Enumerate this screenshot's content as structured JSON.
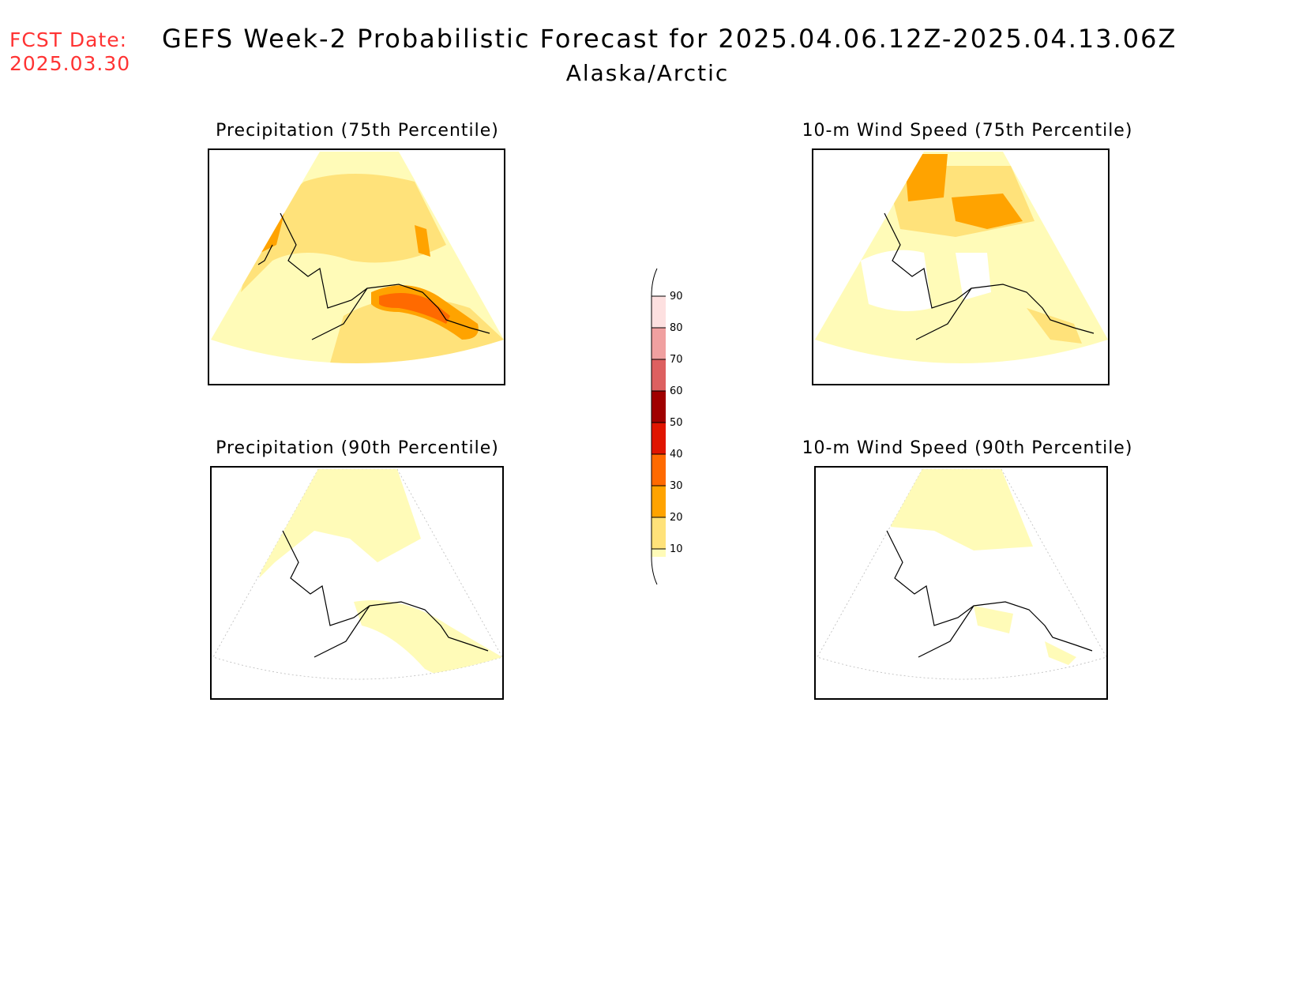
{
  "header": {
    "fcst_label": "FCST Date:",
    "fcst_date": "2025.03.30",
    "title": "GEFS Week-2 Probabilistic Forecast for 2025.04.06.12Z-2025.04.13.06Z",
    "region": "Alaska/Arctic"
  },
  "panels": [
    {
      "id": "precip75",
      "title": "Precipitation (75th Percentile)"
    },
    {
      "id": "wind75",
      "title": "10-m Wind Speed (75th Percentile)"
    },
    {
      "id": "precip90",
      "title": "Precipitation (90th Percentile)"
    },
    {
      "id": "wind90",
      "title": "10-m Wind Speed (90th Percentile)"
    }
  ],
  "legend": {
    "labels": [
      "10",
      "20",
      "30",
      "40",
      "50",
      "60",
      "70",
      "80",
      "90"
    ],
    "colors": {
      "c10": "#fffbb8",
      "c20": "#ffe27a",
      "c30": "#ffa300",
      "c40": "#ff6a00",
      "c50": "#e01500",
      "c60": "#a00000",
      "c70": "#dd6060",
      "c80": "#f0a0a0",
      "c90": "#fde0e0"
    }
  }
}
